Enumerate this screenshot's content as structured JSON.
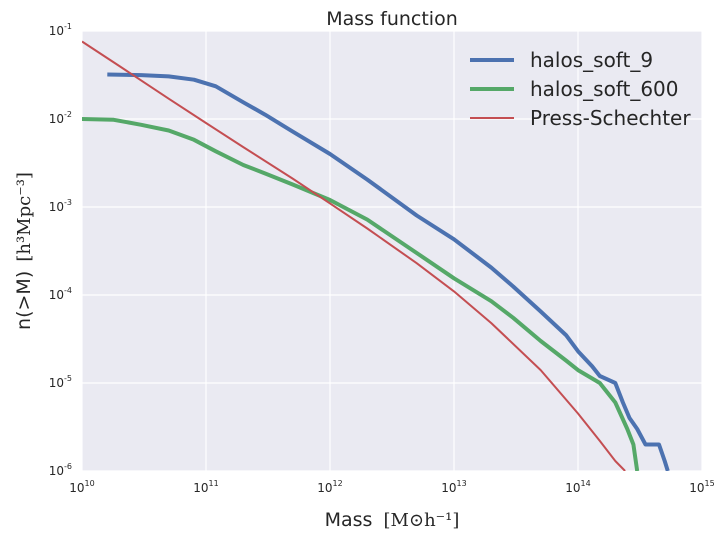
{
  "chart_data": {
    "type": "line",
    "title": "Mass function",
    "xlabel": {
      "text": "Mass",
      "math_unit": "[M⊙h⁻¹]"
    },
    "ylabel": {
      "text": "n(>M)",
      "math_unit": "[h³Mpc⁻³]"
    },
    "x_scale": "log",
    "y_scale": "log",
    "xlim": [
      10000000000.0,
      1000000000000000.0
    ],
    "ylim": [
      1e-06,
      0.1
    ],
    "x_ticks": [
      {
        "base": "10",
        "exp": "10",
        "value": 10000000000.0
      },
      {
        "base": "10",
        "exp": "11",
        "value": 100000000000.0
      },
      {
        "base": "10",
        "exp": "12",
        "value": 1000000000000.0
      },
      {
        "base": "10",
        "exp": "13",
        "value": 10000000000000.0
      },
      {
        "base": "10",
        "exp": "14",
        "value": 100000000000000.0
      },
      {
        "base": "10",
        "exp": "15",
        "value": 1000000000000000.0
      }
    ],
    "y_ticks": [
      {
        "base": "10",
        "exp": "-1",
        "value": 0.1
      },
      {
        "base": "10",
        "exp": "-2",
        "value": 0.01
      },
      {
        "base": "10",
        "exp": "-3",
        "value": 0.001
      },
      {
        "base": "10",
        "exp": "-4",
        "value": 0.0001
      },
      {
        "base": "10",
        "exp": "-5",
        "value": 1e-05
      },
      {
        "base": "10",
        "exp": "-6",
        "value": 1e-06
      }
    ],
    "grid": true,
    "legend_position": "top-right",
    "series": [
      {
        "name": "halos_soft_9",
        "color": "#4c72b0",
        "style": "thick-step",
        "points": [
          [
            16000000000.0,
            0.032
          ],
          [
            30000000000.0,
            0.0315
          ],
          [
            50000000000.0,
            0.0305
          ],
          [
            80000000000.0,
            0.028
          ],
          [
            120000000000.0,
            0.0235
          ],
          [
            200000000000.0,
            0.0155
          ],
          [
            300000000000.0,
            0.0112
          ],
          [
            500000000000.0,
            0.0072
          ],
          [
            1000000000000.0,
            0.004
          ],
          [
            2000000000000.0,
            0.00205
          ],
          [
            5000000000000.0,
            0.0008
          ],
          [
            10000000000000.0,
            0.00043
          ],
          [
            20000000000000.0,
            0.000205
          ],
          [
            30000000000000.0,
            0.000125
          ],
          [
            50000000000000.0,
            6.5e-05
          ],
          [
            80000000000000.0,
            3.5e-05
          ],
          [
            100000000000000.0,
            2.3e-05
          ],
          [
            130000000000000.0,
            1.55e-05
          ],
          [
            150000000000000.0,
            1.2e-05
          ],
          [
            200000000000000.0,
            1e-05
          ],
          [
            230000000000000.0,
            6e-06
          ],
          [
            260000000000000.0,
            4e-06
          ],
          [
            300000000000000.0,
            3e-06
          ],
          [
            350000000000000.0,
            2e-06
          ],
          [
            450000000000000.0,
            2e-06
          ],
          [
            500000000000000.0,
            1.3e-06
          ],
          [
            530000000000000.0,
            1e-06
          ]
        ]
      },
      {
        "name": "halos_soft_600",
        "color": "#55a868",
        "style": "thick-step",
        "points": [
          [
            10000000000.0,
            0.01
          ],
          [
            18000000000.0,
            0.0098
          ],
          [
            30000000000.0,
            0.0086
          ],
          [
            50000000000.0,
            0.0074
          ],
          [
            80000000000.0,
            0.0058
          ],
          [
            120000000000.0,
            0.0043
          ],
          [
            200000000000.0,
            0.003
          ],
          [
            300000000000.0,
            0.0024
          ],
          [
            500000000000.0,
            0.0018
          ],
          [
            1000000000000.0,
            0.0012
          ],
          [
            2000000000000.0,
            0.00072
          ],
          [
            5000000000000.0,
            0.0003
          ],
          [
            10000000000000.0,
            0.000155
          ],
          [
            20000000000000.0,
            8.5e-05
          ],
          [
            30000000000000.0,
            5.5e-05
          ],
          [
            50000000000000.0,
            3e-05
          ],
          [
            80000000000000.0,
            1.8e-05
          ],
          [
            100000000000000.0,
            1.4e-05
          ],
          [
            150000000000000.0,
            1e-05
          ],
          [
            200000000000000.0,
            6e-06
          ],
          [
            250000000000000.0,
            3e-06
          ],
          [
            280000000000000.0,
            2e-06
          ],
          [
            300000000000000.0,
            1e-06
          ]
        ]
      },
      {
        "name": "Press-Schechter",
        "color": "#c44e52",
        "style": "thin",
        "points": [
          [
            10000000000.0,
            0.076
          ],
          [
            20000000000.0,
            0.04
          ],
          [
            50000000000.0,
            0.017
          ],
          [
            100000000000.0,
            0.009
          ],
          [
            200000000000.0,
            0.0048
          ],
          [
            500000000000.0,
            0.0021
          ],
          [
            1000000000000.0,
            0.0011
          ],
          [
            2000000000000.0,
            0.00057
          ],
          [
            5000000000000.0,
            0.00023
          ],
          [
            10000000000000.0,
            0.00011
          ],
          [
            20000000000000.0,
            4.8e-05
          ],
          [
            50000000000000.0,
            1.4e-05
          ],
          [
            100000000000000.0,
            4.5e-06
          ],
          [
            150000000000000.0,
            2.2e-06
          ],
          [
            200000000000000.0,
            1.3e-06
          ],
          [
            240000000000000.0,
            1e-06
          ]
        ]
      }
    ]
  }
}
